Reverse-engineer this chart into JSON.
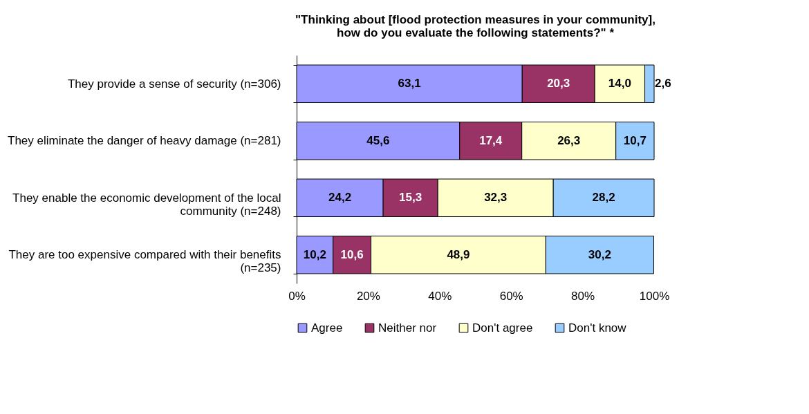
{
  "chart_data": {
    "type": "bar",
    "orientation": "horizontal",
    "stacked": true,
    "title": "\"Thinking about [flood protection measures in your community],\nhow do you evaluate the following  statements?\" *",
    "categories": [
      "They provide a sense of security (n=306)",
      "They eliminate the danger of heavy damage (n=281)",
      "They enable the economic development of the local community (n=248)",
      "They are too expensive compared with their benefits (n=235)"
    ],
    "series": [
      {
        "name": "Agree",
        "color": "#9999ff",
        "values": [
          63.1,
          45.6,
          24.2,
          10.2
        ],
        "value_labels": [
          "63,1",
          "45,6",
          "24,2",
          "10,2"
        ]
      },
      {
        "name": "Neither nor",
        "color": "#993366",
        "values": [
          20.3,
          17.4,
          15.3,
          10.6
        ],
        "value_labels": [
          "20,3",
          "17,4",
          "15,3",
          "10,6"
        ]
      },
      {
        "name": "Don't agree",
        "color": "#ffffcc",
        "values": [
          14.0,
          26.3,
          32.3,
          48.9
        ],
        "value_labels": [
          "14,0",
          "26,3",
          "32,3",
          "48,9"
        ]
      },
      {
        "name": "Don't know",
        "color": "#99ccff",
        "values": [
          2.6,
          10.7,
          28.2,
          30.2
        ],
        "value_labels": [
          "2,6",
          "10,7",
          "28,2",
          "30,2"
        ]
      }
    ],
    "xlim": [
      0,
      100
    ],
    "xticks": [
      {
        "value": 0,
        "label": "0%"
      },
      {
        "value": 20,
        "label": "20%"
      },
      {
        "value": 40,
        "label": "40%"
      },
      {
        "value": 60,
        "label": "60%"
      },
      {
        "value": 80,
        "label": "80%"
      },
      {
        "value": 100,
        "label": "100%"
      }
    ],
    "grid": false,
    "legend": "bottom"
  }
}
